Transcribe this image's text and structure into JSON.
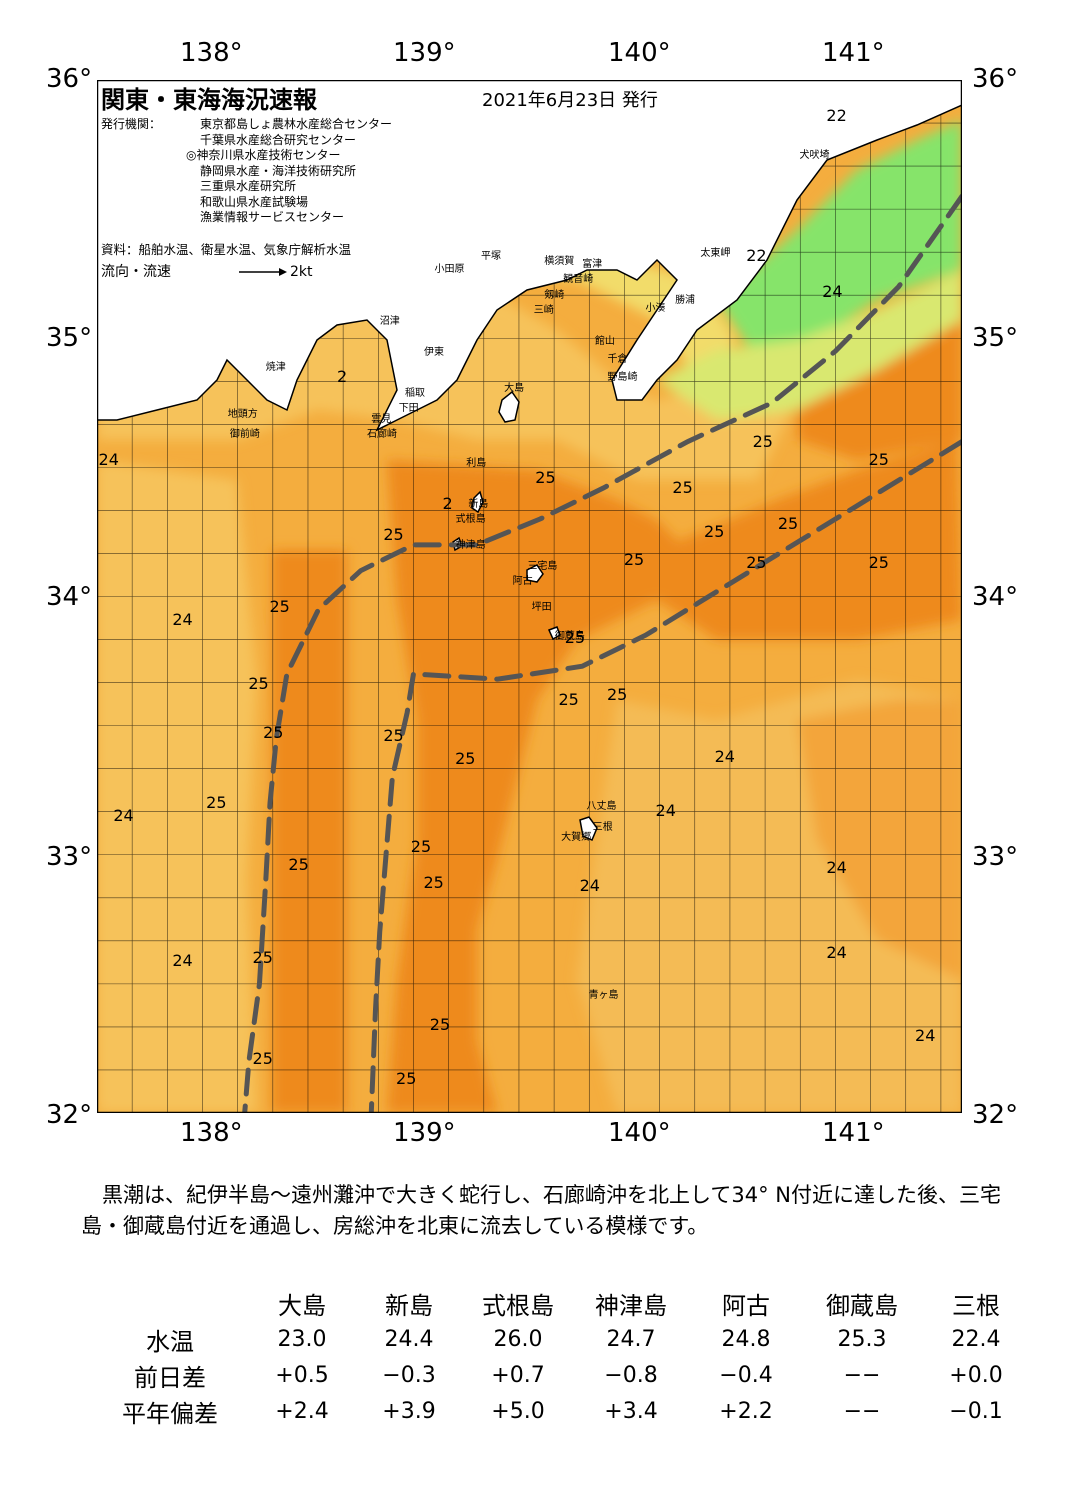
{
  "title": "関東・東海海況速報",
  "date": "2021年6月23日 発行",
  "issuers_label": "発行機関：",
  "issuers": [
    "東京都島しょ農林水産総合センター",
    "千葉県水産総合研究センター",
    "◎神奈川県水産技術センター",
    "静岡県水産・海洋技術研究所",
    "三重県水産研究所",
    "和歌山県水産試験場",
    "漁業情報サービスセンター"
  ],
  "sources": "資料：船舶水温、衛星水温、気象庁解析水温",
  "flow_label": "流向・流速",
  "flow_scale": "2kt",
  "axes": {
    "lon_labels": [
      "138°",
      "139°",
      "140°",
      "141°"
    ],
    "lat_labels": [
      "36°",
      "35°",
      "34°",
      "33°",
      "32°"
    ],
    "lon_range": [
      137.5,
      141.6
    ],
    "lat_range": [
      32.0,
      36.0
    ]
  },
  "colors": {
    "warm": "#f5a02e",
    "warmer": "#ee8a1e",
    "mid": "#f6c25a",
    "cool": "#f2dc6a",
    "cooler": "#d9e870",
    "green": "#86e46a",
    "land": "#ffffff",
    "kuroshio": "#555555"
  },
  "places": [
    {
      "name": "犬吠埼",
      "lon": 140.83,
      "lat": 35.72
    },
    {
      "name": "太東岬",
      "lon": 140.36,
      "lat": 35.34
    },
    {
      "name": "勝浦",
      "lon": 140.24,
      "lat": 35.16
    },
    {
      "name": "小湊",
      "lon": 140.1,
      "lat": 35.13
    },
    {
      "name": "小田原",
      "lon": 139.1,
      "lat": 35.28
    },
    {
      "name": "平塚",
      "lon": 139.32,
      "lat": 35.33
    },
    {
      "name": "横須賀",
      "lon": 139.62,
      "lat": 35.31
    },
    {
      "name": "観音崎",
      "lon": 139.71,
      "lat": 35.24
    },
    {
      "name": "富津",
      "lon": 139.8,
      "lat": 35.3
    },
    {
      "name": "剱崎",
      "lon": 139.62,
      "lat": 35.18
    },
    {
      "name": "三崎",
      "lon": 139.57,
      "lat": 35.12
    },
    {
      "name": "館山",
      "lon": 139.86,
      "lat": 35.0
    },
    {
      "name": "千倉",
      "lon": 139.92,
      "lat": 34.93
    },
    {
      "name": "野島崎",
      "lon": 139.92,
      "lat": 34.86
    },
    {
      "name": "沼津",
      "lon": 138.84,
      "lat": 35.08
    },
    {
      "name": "伊東",
      "lon": 139.05,
      "lat": 34.96
    },
    {
      "name": "焼津",
      "lon": 138.3,
      "lat": 34.9
    },
    {
      "name": "稲取",
      "lon": 138.96,
      "lat": 34.8
    },
    {
      "name": "下田",
      "lon": 138.93,
      "lat": 34.74
    },
    {
      "name": "雲見",
      "lon": 138.8,
      "lat": 34.7
    },
    {
      "name": "石廊崎",
      "lon": 138.78,
      "lat": 34.64
    },
    {
      "name": "地頭方",
      "lon": 138.12,
      "lat": 34.72
    },
    {
      "name": "御前崎",
      "lon": 138.13,
      "lat": 34.64
    },
    {
      "name": "大島",
      "lon": 139.43,
      "lat": 34.82
    },
    {
      "name": "利島",
      "lon": 139.25,
      "lat": 34.53
    },
    {
      "name": "新島",
      "lon": 139.26,
      "lat": 34.37
    },
    {
      "name": "式根島",
      "lon": 139.2,
      "lat": 34.31
    },
    {
      "name": "神津島",
      "lon": 139.2,
      "lat": 34.21
    },
    {
      "name": "三宅島",
      "lon": 139.54,
      "lat": 34.13
    },
    {
      "name": "阿古",
      "lon": 139.47,
      "lat": 34.07
    },
    {
      "name": "坪田",
      "lon": 139.56,
      "lat": 33.97
    },
    {
      "name": "御蔵島",
      "lon": 139.67,
      "lat": 33.86
    },
    {
      "name": "八丈島",
      "lon": 139.82,
      "lat": 33.2
    },
    {
      "name": "三根",
      "lon": 139.85,
      "lat": 33.12
    },
    {
      "name": "大賀郷",
      "lon": 139.7,
      "lat": 33.08
    },
    {
      "name": "青ヶ島",
      "lon": 139.83,
      "lat": 32.47
    }
  ],
  "temp_labels": [
    {
      "t": "22",
      "lon": 141.0,
      "lat": 35.86
    },
    {
      "t": "22",
      "lon": 140.62,
      "lat": 35.32
    },
    {
      "t": "24",
      "lon": 140.98,
      "lat": 35.18
    },
    {
      "t": "2",
      "lon": 138.68,
      "lat": 34.85
    },
    {
      "t": "25",
      "lon": 140.65,
      "lat": 34.6
    },
    {
      "t": "25",
      "lon": 141.2,
      "lat": 34.53
    },
    {
      "t": "24",
      "lon": 137.55,
      "lat": 34.53
    },
    {
      "t": "25",
      "lon": 139.62,
      "lat": 34.46
    },
    {
      "t": "25",
      "lon": 140.27,
      "lat": 34.42
    },
    {
      "t": "2",
      "lon": 139.18,
      "lat": 34.36
    },
    {
      "t": "25",
      "lon": 140.77,
      "lat": 34.28
    },
    {
      "t": "25",
      "lon": 140.42,
      "lat": 34.25
    },
    {
      "t": "25",
      "lon": 138.9,
      "lat": 34.24
    },
    {
      "t": "25",
      "lon": 140.04,
      "lat": 34.14
    },
    {
      "t": "25",
      "lon": 140.62,
      "lat": 34.13
    },
    {
      "t": "25",
      "lon": 141.2,
      "lat": 34.13
    },
    {
      "t": "25",
      "lon": 138.36,
      "lat": 33.96
    },
    {
      "t": "24",
      "lon": 137.9,
      "lat": 33.91
    },
    {
      "t": "25",
      "lon": 139.76,
      "lat": 33.84
    },
    {
      "t": "25",
      "lon": 138.26,
      "lat": 33.66
    },
    {
      "t": "25",
      "lon": 139.73,
      "lat": 33.6
    },
    {
      "t": "25",
      "lon": 139.96,
      "lat": 33.62
    },
    {
      "t": "25",
      "lon": 138.33,
      "lat": 33.47
    },
    {
      "t": "25",
      "lon": 138.9,
      "lat": 33.46
    },
    {
      "t": "25",
      "lon": 139.24,
      "lat": 33.37
    },
    {
      "t": "24",
      "lon": 140.47,
      "lat": 33.38
    },
    {
      "t": "25",
      "lon": 138.06,
      "lat": 33.2
    },
    {
      "t": "24",
      "lon": 137.62,
      "lat": 33.15
    },
    {
      "t": "24",
      "lon": 140.19,
      "lat": 33.17
    },
    {
      "t": "25",
      "lon": 139.03,
      "lat": 33.03
    },
    {
      "t": "25",
      "lon": 138.45,
      "lat": 32.96
    },
    {
      "t": "24",
      "lon": 141.0,
      "lat": 32.95
    },
    {
      "t": "25",
      "lon": 139.09,
      "lat": 32.89
    },
    {
      "t": "24",
      "lon": 139.83,
      "lat": 32.88
    },
    {
      "t": "25",
      "lon": 138.28,
      "lat": 32.6
    },
    {
      "t": "24",
      "lon": 137.9,
      "lat": 32.59
    },
    {
      "t": "24",
      "lon": 141.0,
      "lat": 32.62
    },
    {
      "t": "25",
      "lon": 139.12,
      "lat": 32.34
    },
    {
      "t": "24",
      "lon": 141.42,
      "lat": 32.3
    },
    {
      "t": "25",
      "lon": 138.28,
      "lat": 32.21
    },
    {
      "t": "25",
      "lon": 138.96,
      "lat": 32.13
    }
  ],
  "kuroshio_axis": [
    [
      [
        141.6,
        34.6
      ],
      [
        141.3,
        34.45
      ],
      [
        140.9,
        34.25
      ],
      [
        140.5,
        34.05
      ],
      [
        140.1,
        33.85
      ],
      [
        139.8,
        33.73
      ],
      [
        139.4,
        33.68
      ],
      [
        139.0,
        33.7
      ],
      [
        138.97,
        33.55
      ],
      [
        138.9,
        33.3
      ],
      [
        138.87,
        33.0
      ],
      [
        138.84,
        32.7
      ],
      [
        138.82,
        32.4
      ],
      [
        138.8,
        32.0
      ]
    ],
    [
      [
        141.6,
        35.55
      ],
      [
        141.3,
        35.2
      ],
      [
        141.0,
        34.95
      ],
      [
        140.7,
        34.75
      ],
      [
        140.3,
        34.6
      ],
      [
        139.9,
        34.42
      ],
      [
        139.6,
        34.3
      ],
      [
        139.3,
        34.2
      ],
      [
        139.0,
        34.2
      ],
      [
        138.75,
        34.1
      ],
      [
        138.55,
        33.95
      ],
      [
        138.4,
        33.7
      ],
      [
        138.35,
        33.45
      ],
      [
        138.32,
        33.2
      ],
      [
        138.3,
        32.9
      ],
      [
        138.27,
        32.5
      ],
      [
        138.22,
        32.2
      ],
      [
        138.2,
        32.0
      ]
    ]
  ],
  "stations": {
    "headers": [
      "大島",
      "新島",
      "式根島",
      "神津島",
      "阿古",
      "御蔵島",
      "三根"
    ],
    "rows": [
      {
        "label": "水温",
        "values": [
          "23.0",
          "24.4",
          "26.0",
          "24.7",
          "24.8",
          "25.3",
          "22.4"
        ]
      },
      {
        "label": "前日差",
        "values": [
          "+0.5",
          "−0.3",
          "+0.7",
          "−0.8",
          "−0.4",
          "−−",
          "+0.0"
        ]
      },
      {
        "label": "平年偏差",
        "values": [
          "+2.4",
          "+3.9",
          "+5.0",
          "+3.4",
          "+2.2",
          "−−",
          "−0.1"
        ]
      }
    ]
  },
  "summary": "　黒潮は、紀伊半島～遠州灘沖で大きく蛇行し、石廊崎沖を北上して34° N付近に達した後、三宅島・御蔵島付近を通過し、房総沖を北東に流去している模様です。"
}
